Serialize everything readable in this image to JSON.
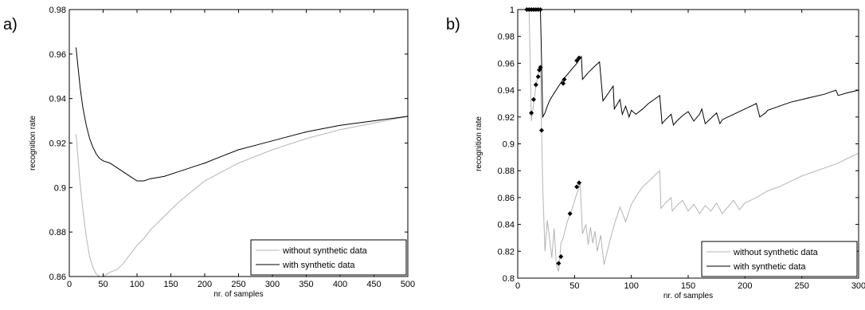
{
  "chart_data": [
    {
      "panel": "a)",
      "type": "line",
      "xlabel": "nr. of samples",
      "ylabel": "recognition rate",
      "xlim": [
        0,
        500
      ],
      "ylim": [
        0.86,
        0.98
      ],
      "xticks": [
        0,
        50,
        100,
        150,
        200,
        250,
        300,
        350,
        400,
        450,
        500
      ],
      "yticks": [
        0.86,
        0.88,
        0.9,
        0.92,
        0.94,
        0.96,
        0.98
      ],
      "ytick_labels": [
        "0.86",
        "0.88",
        "0.9",
        "0.92",
        "0.94",
        "0.96",
        "0.98"
      ],
      "grid": false,
      "legend_position": "bottom-right",
      "series": [
        {
          "name": "without synthetic data",
          "color": "#b4b4b4",
          "x": [
            10,
            15,
            20,
            25,
            30,
            35,
            40,
            45,
            50,
            55,
            60,
            70,
            80,
            90,
            100,
            110,
            120,
            140,
            160,
            180,
            200,
            225,
            250,
            275,
            300,
            350,
            400,
            450,
            500
          ],
          "y": [
            0.924,
            0.905,
            0.89,
            0.878,
            0.869,
            0.864,
            0.861,
            0.86,
            0.86,
            0.861,
            0.862,
            0.863,
            0.866,
            0.87,
            0.874,
            0.877,
            0.881,
            0.887,
            0.893,
            0.898,
            0.903,
            0.907,
            0.911,
            0.914,
            0.917,
            0.922,
            0.926,
            0.929,
            0.932
          ]
        },
        {
          "name": "with synthetic data",
          "color": "#000000",
          "x": [
            10,
            13,
            16,
            20,
            25,
            30,
            35,
            40,
            45,
            50,
            60,
            70,
            80,
            90,
            100,
            110,
            120,
            140,
            160,
            180,
            200,
            225,
            250,
            275,
            300,
            350,
            400,
            450,
            500
          ],
          "y": [
            0.963,
            0.954,
            0.945,
            0.936,
            0.928,
            0.922,
            0.918,
            0.915,
            0.913,
            0.912,
            0.911,
            0.909,
            0.907,
            0.905,
            0.903,
            0.903,
            0.904,
            0.905,
            0.907,
            0.909,
            0.911,
            0.914,
            0.917,
            0.919,
            0.921,
            0.925,
            0.928,
            0.93,
            0.932
          ]
        }
      ]
    },
    {
      "panel": "b)",
      "type": "line",
      "xlabel": "nr. of samples",
      "ylabel": "recognition rate",
      "xlim": [
        0,
        300
      ],
      "ylim": [
        0.8,
        1.0
      ],
      "xticks": [
        0,
        50,
        100,
        150,
        200,
        250,
        300
      ],
      "yticks": [
        0.8,
        0.82,
        0.84,
        0.86,
        0.88,
        0.9,
        0.92,
        0.94,
        0.96,
        0.98,
        1.0
      ],
      "ytick_labels": [
        "0.8",
        "0.82",
        "0.84",
        "0.86",
        "0.88",
        "0.9",
        "0.92",
        "0.94",
        "0.96",
        "0.98",
        "1"
      ],
      "grid": false,
      "legend_position": "bottom-right",
      "series": [
        {
          "name": "without synthetic data",
          "color": "#b4b4b4",
          "x": [
            10,
            12,
            14,
            16,
            18,
            20,
            21,
            22,
            24,
            26,
            28,
            30,
            32,
            34,
            36,
            38,
            40,
            44,
            48,
            52,
            55,
            57,
            60,
            62,
            64,
            66,
            68,
            70,
            73,
            76,
            80,
            85,
            90,
            95,
            100,
            105,
            110,
            115,
            120,
            125,
            126,
            130,
            135,
            136,
            140,
            145,
            150,
            155,
            160,
            165,
            170,
            175,
            180,
            185,
            190,
            195,
            200,
            210,
            220,
            230,
            240,
            250,
            260,
            270,
            280,
            290,
            300
          ],
          "y": [
            1.0,
            0.917,
            0.93,
            0.943,
            0.952,
            0.958,
            0.91,
            0.868,
            0.82,
            0.843,
            0.83,
            0.815,
            0.837,
            0.81,
            0.805,
            0.826,
            0.83,
            0.843,
            0.852,
            0.863,
            0.87,
            0.833,
            0.84,
            0.825,
            0.838,
            0.826,
            0.835,
            0.82,
            0.832,
            0.81,
            0.824,
            0.84,
            0.853,
            0.842,
            0.855,
            0.862,
            0.868,
            0.872,
            0.876,
            0.88,
            0.852,
            0.856,
            0.86,
            0.85,
            0.854,
            0.858,
            0.85,
            0.855,
            0.848,
            0.854,
            0.85,
            0.856,
            0.848,
            0.853,
            0.858,
            0.851,
            0.856,
            0.86,
            0.865,
            0.868,
            0.872,
            0.876,
            0.879,
            0.882,
            0.885,
            0.889,
            0.893
          ]
        },
        {
          "name": "with synthetic data",
          "color": "#000000",
          "x": [
            0,
            20,
            21,
            22,
            24,
            26,
            28,
            30,
            33,
            36,
            40,
            44,
            48,
            52,
            56,
            57,
            62,
            68,
            72,
            75,
            80,
            84,
            85,
            90,
            92,
            95,
            98,
            100,
            104,
            110,
            115,
            120,
            125,
            127,
            130,
            135,
            137,
            140,
            145,
            150,
            155,
            160,
            162,
            165,
            170,
            175,
            178,
            180,
            185,
            190,
            195,
            200,
            205,
            210,
            213,
            218,
            220,
            230,
            240,
            250,
            260,
            270,
            280,
            282,
            290,
            300
          ],
          "y": [
            1.0,
            1.0,
            0.96,
            0.92,
            0.923,
            0.928,
            0.932,
            0.935,
            0.939,
            0.943,
            0.948,
            0.952,
            0.956,
            0.96,
            0.965,
            0.948,
            0.953,
            0.958,
            0.961,
            0.932,
            0.938,
            0.943,
            0.926,
            0.933,
            0.922,
            0.928,
            0.92,
            0.925,
            0.922,
            0.926,
            0.93,
            0.933,
            0.936,
            0.915,
            0.918,
            0.922,
            0.914,
            0.917,
            0.921,
            0.924,
            0.917,
            0.922,
            0.926,
            0.915,
            0.919,
            0.923,
            0.915,
            0.918,
            0.92,
            0.922,
            0.924,
            0.926,
            0.928,
            0.93,
            0.92,
            0.923,
            0.925,
            0.928,
            0.931,
            0.933,
            0.935,
            0.937,
            0.94,
            0.936,
            0.938,
            0.94
          ]
        }
      ],
      "markers": {
        "series": "with synthetic data",
        "symbol": "diamond",
        "points": [
          [
            8,
            1.0
          ],
          [
            10,
            1.0
          ],
          [
            12,
            1.0
          ],
          [
            14,
            1.0
          ],
          [
            16,
            1.0
          ],
          [
            18,
            1.0
          ],
          [
            20,
            1.0
          ],
          [
            12,
            0.923
          ],
          [
            14,
            0.933
          ],
          [
            16,
            0.944
          ],
          [
            18,
            0.95
          ],
          [
            19,
            0.955
          ],
          [
            20,
            0.957
          ],
          [
            21,
            0.91
          ],
          [
            36,
            0.811
          ],
          [
            38,
            0.816
          ],
          [
            46,
            0.848
          ],
          [
            52,
            0.868
          ],
          [
            54,
            0.871
          ],
          [
            40,
            0.945
          ],
          [
            41,
            0.948
          ],
          [
            52,
            0.962
          ],
          [
            54,
            0.964
          ]
        ]
      }
    }
  ]
}
